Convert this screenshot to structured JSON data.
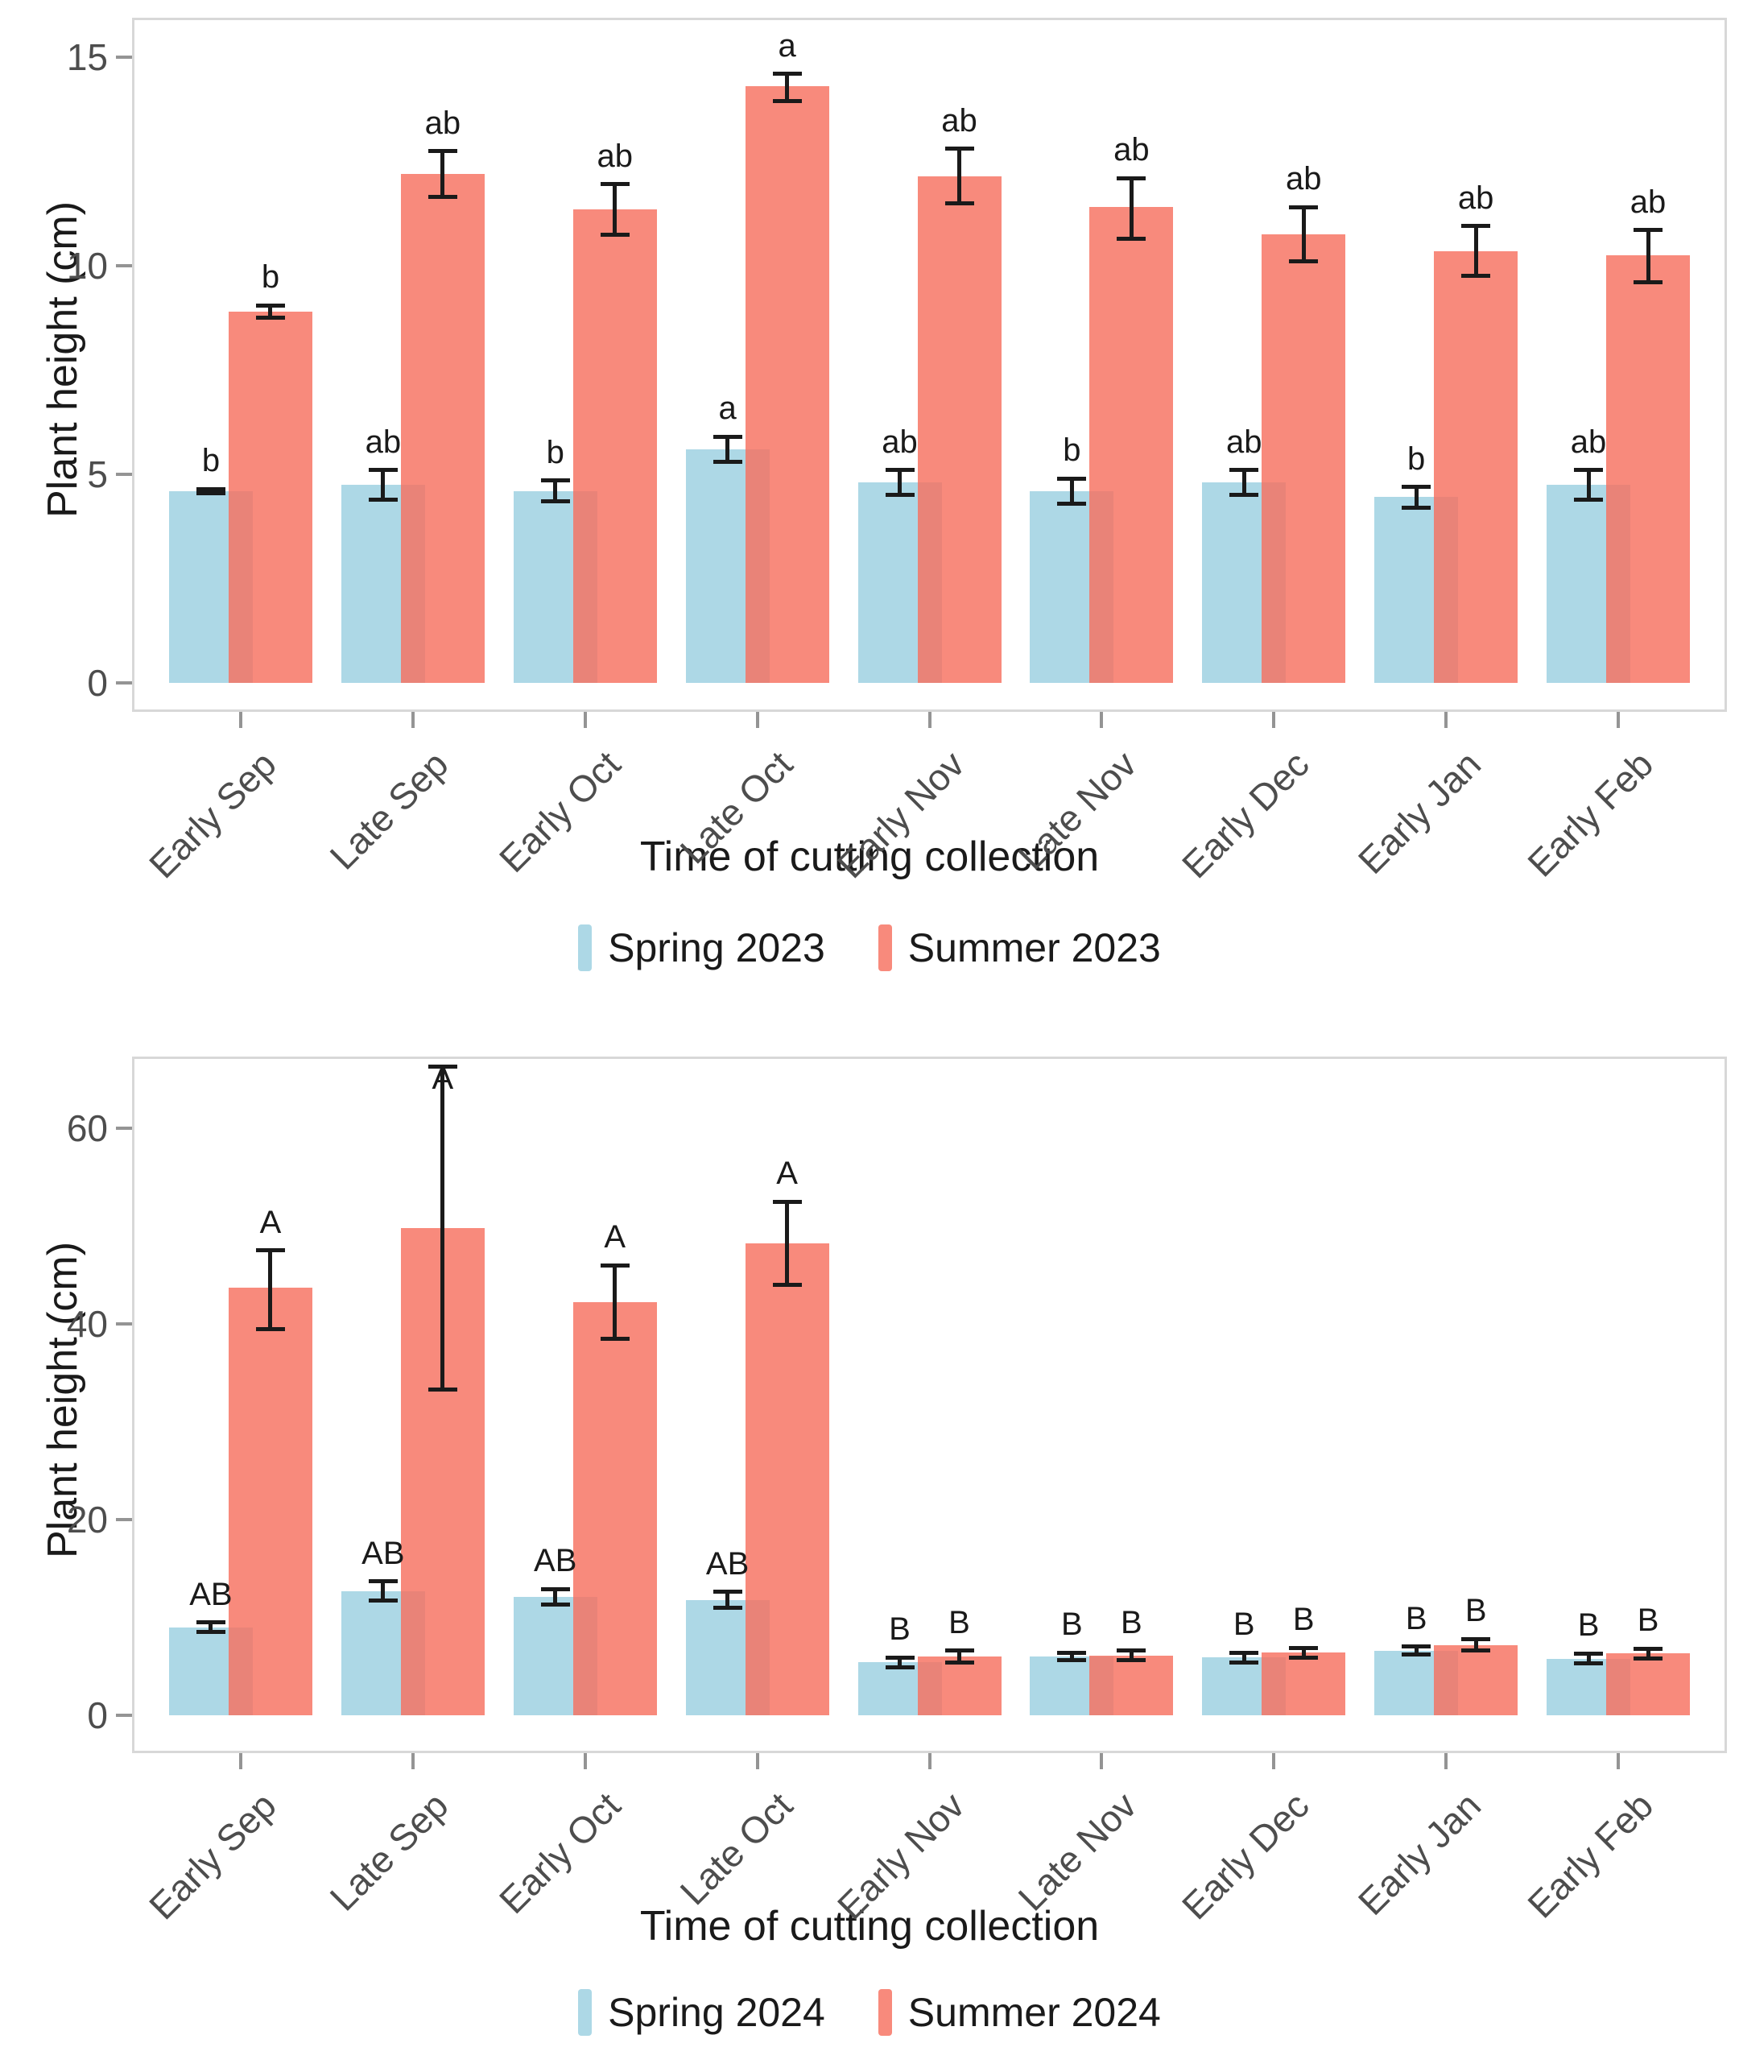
{
  "page": {
    "background": "#ffffff"
  },
  "colors": {
    "spring_fill": "#ADD8E6",
    "summer_fill_rgba": "rgba(247,112,95,0.82)",
    "summer_legend": "#F88A7C",
    "error_bar": "#1A1A1A",
    "axis_text": "#4D4D4D",
    "title_text": "#1A1A1A",
    "panel_border": "#D8D8D8",
    "tick_mark": "#949494"
  },
  "chart_data": [
    {
      "type": "bar",
      "title": "",
      "xlabel": "Time of cutting collection",
      "ylabel": "Plant height (cm)",
      "categories": [
        "Early Sep",
        "Late Sep",
        "Early Oct",
        "Late Oct",
        "Early Nov",
        "Late Nov",
        "Early Dec",
        "Early Jan",
        "Early Feb"
      ],
      "yticks": [
        0,
        5,
        10,
        15
      ],
      "ylim": [
        0,
        15.5
      ],
      "grid": false,
      "legend_position": "bottom",
      "error_bars": "mean ± se, caps shown",
      "series": [
        {
          "name": "Spring 2023",
          "color_key": "spring",
          "values": [
            4.6,
            4.75,
            4.6,
            5.6,
            4.8,
            4.6,
            4.8,
            4.45,
            4.75
          ],
          "err_low": [
            4.55,
            4.4,
            4.35,
            5.3,
            4.5,
            4.3,
            4.5,
            4.2,
            4.4
          ],
          "err_high": [
            4.65,
            5.1,
            4.85,
            5.9,
            5.1,
            4.9,
            5.1,
            4.7,
            5.1
          ],
          "letters": [
            "b",
            "ab",
            "b",
            "a",
            "ab",
            "b",
            "ab",
            "b",
            "ab"
          ]
        },
        {
          "name": "Summer 2023",
          "color_key": "summer",
          "values": [
            8.9,
            12.2,
            11.35,
            14.3,
            12.15,
            11.4,
            10.75,
            10.35,
            10.25
          ],
          "err_low": [
            8.75,
            11.65,
            10.75,
            13.95,
            11.5,
            10.65,
            10.1,
            9.75,
            9.6
          ],
          "err_high": [
            9.05,
            12.75,
            11.95,
            14.6,
            12.8,
            12.1,
            11.4,
            10.95,
            10.85
          ],
          "letters": [
            "b",
            "ab",
            "ab",
            "a",
            "ab",
            "ab",
            "ab",
            "ab",
            "ab"
          ]
        }
      ]
    },
    {
      "type": "bar",
      "title": "",
      "xlabel": "Time of cutting collection",
      "ylabel": "Plant height (cm)",
      "categories": [
        "Early Sep",
        "Late Sep",
        "Early Oct",
        "Late Oct",
        "Early Nov",
        "Late Nov",
        "Early Dec",
        "Early Jan",
        "Early Feb"
      ],
      "yticks": [
        0,
        20,
        40,
        60
      ],
      "ylim": [
        0,
        68
      ],
      "grid": false,
      "legend_position": "bottom",
      "error_bars": "mean ± se, caps shown",
      "series": [
        {
          "name": "Spring 2024",
          "color_key": "spring",
          "values": [
            9.0,
            12.7,
            12.1,
            11.8,
            5.4,
            6.0,
            5.9,
            6.6,
            5.8
          ],
          "err_low": [
            8.5,
            11.7,
            11.3,
            11.0,
            4.9,
            5.6,
            5.4,
            6.2,
            5.3
          ],
          "err_high": [
            9.5,
            13.7,
            12.9,
            12.6,
            5.9,
            6.4,
            6.4,
            7.0,
            6.3
          ],
          "letters": [
            "AB",
            "AB",
            "AB",
            "AB",
            "B",
            "B",
            "B",
            "B",
            "B"
          ]
        },
        {
          "name": "Summer 2024",
          "color_key": "summer",
          "values": [
            43.7,
            49.8,
            42.2,
            48.2,
            6.0,
            6.1,
            6.4,
            7.2,
            6.3
          ],
          "err_low": [
            39.5,
            33.3,
            38.5,
            44.0,
            5.4,
            5.6,
            5.9,
            6.6,
            5.8
          ],
          "err_high": [
            47.5,
            66.3,
            46.0,
            52.5,
            6.6,
            6.6,
            6.9,
            7.8,
            6.8
          ],
          "letters": [
            "A",
            "A",
            "A",
            "A",
            "B",
            "B",
            "B",
            "B",
            "B"
          ]
        }
      ]
    }
  ]
}
